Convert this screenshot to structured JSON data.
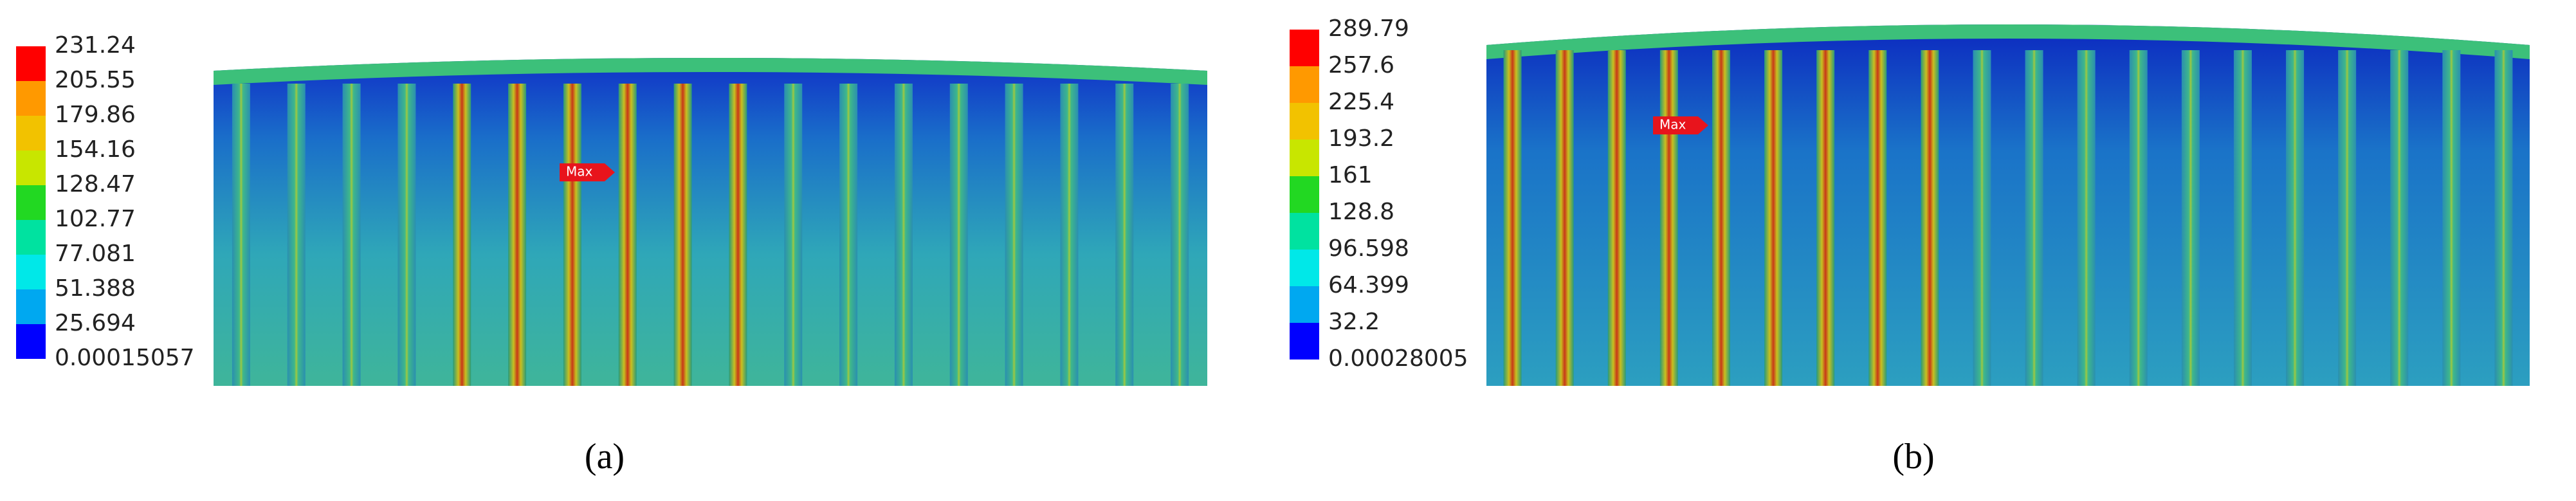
{
  "panels": [
    {
      "legend": [
        "231.24",
        "205.55",
        "179.86",
        "154.16",
        "128.47",
        "102.77",
        "77.081",
        "51.388",
        "25.694",
        "0.00015057"
      ],
      "marker": "Max",
      "caption": "(a)"
    },
    {
      "legend": [
        "289.79",
        "257.6",
        "225.4",
        "193.2",
        "161",
        "128.8",
        "96.598",
        "64.399",
        "32.2",
        "0.00028005"
      ],
      "marker": "Max",
      "caption": "(b)"
    }
  ]
}
